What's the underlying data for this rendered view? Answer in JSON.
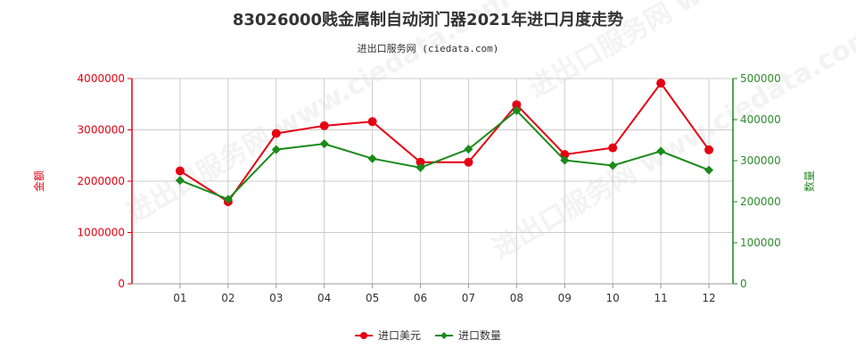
{
  "header": {
    "title": "83026000贱金属制自动闭门器2021年进口月度走势",
    "subtitle": "进出口服务网 (ciedata.com)"
  },
  "watermark_text": "进出口服务网 www.ciedata.com",
  "colors": {
    "amount": "#e60012",
    "quantity": "#1a8a1a",
    "grid": "#cccccc",
    "axis_left": "#e60012",
    "axis_right": "#1a8a1a"
  },
  "chart_data": {
    "type": "line",
    "title": "83026000贱金属制自动闭门器2021年进口月度走势",
    "categories": [
      "01",
      "02",
      "03",
      "04",
      "05",
      "06",
      "07",
      "08",
      "09",
      "10",
      "11",
      "12"
    ],
    "y_left": {
      "label": "金额",
      "ylim": [
        0,
        4000000
      ],
      "ticks": [
        "0",
        "1000000",
        "2000000",
        "3000000",
        "4000000"
      ],
      "tick_values": [
        0,
        1000000,
        2000000,
        3000000,
        4000000
      ]
    },
    "y_right": {
      "label": "数量",
      "ylim": [
        0,
        500000
      ],
      "ticks": [
        "0",
        "100000",
        "200000",
        "300000",
        "400000",
        "500000"
      ],
      "tick_values": [
        0,
        100000,
        200000,
        300000,
        400000,
        500000
      ]
    },
    "series": [
      {
        "name": "进口美元",
        "axis": "left",
        "values": [
          2200000,
          1600000,
          2930000,
          3080000,
          3160000,
          2370000,
          2370000,
          3490000,
          2520000,
          2650000,
          3910000,
          2610000
        ]
      },
      {
        "name": "进口数量",
        "axis": "right",
        "values": [
          252000,
          206000,
          327000,
          341000,
          305000,
          283000,
          328000,
          422000,
          301000,
          288000,
          323000,
          277000
        ]
      }
    ],
    "grid": true,
    "legend_position": "bottom-center"
  }
}
